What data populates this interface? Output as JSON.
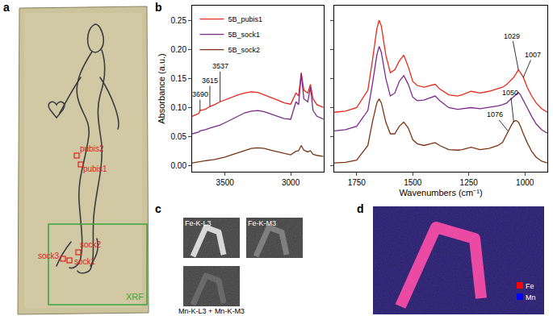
{
  "chart_data": [
    {
      "type": "line",
      "y_label": "Absorbance (a.u.)",
      "legend": "top left",
      "grid": false,
      "x": [
        3750,
        3700,
        3690,
        3650,
        3615,
        3580,
        3537,
        3500,
        3450,
        3400,
        3350,
        3300,
        3250,
        3200,
        3150,
        3100,
        3050,
        3000,
        2960,
        2940,
        2920,
        2900,
        2870,
        2850,
        2830,
        2800,
        2750
      ],
      "xlim": [
        3750,
        2750
      ],
      "xticks": [
        3500,
        3000
      ],
      "ylim": [
        -0.01,
        0.275
      ],
      "yticks": [
        {
          "value": 0,
          "label": "0.00"
        },
        {
          "value": 0.05,
          "label": "0.05"
        },
        {
          "value": 0.1,
          "label": "0.10"
        },
        {
          "value": 0.15,
          "label": "0.15"
        },
        {
          "value": 0.2,
          "label": "0.20"
        },
        {
          "value": 0.25,
          "label": "0.25"
        }
      ],
      "series": [
        {
          "name": "5B_pubis1",
          "color": "#e8291c",
          "values": [
            0.085,
            0.09,
            0.095,
            0.097,
            0.102,
            0.105,
            0.11,
            0.113,
            0.118,
            0.122,
            0.125,
            0.127,
            0.126,
            0.122,
            0.117,
            0.113,
            0.108,
            0.106,
            0.125,
            0.12,
            0.16,
            0.13,
            0.125,
            0.14,
            0.115,
            0.105,
            0.1
          ]
        },
        {
          "name": "5B_sock1",
          "color": "#7b2a8c",
          "values": [
            0.055,
            0.058,
            0.06,
            0.062,
            0.065,
            0.067,
            0.07,
            0.074,
            0.08,
            0.086,
            0.091,
            0.094,
            0.095,
            0.093,
            0.089,
            0.085,
            0.081,
            0.08,
            0.11,
            0.105,
            0.158,
            0.115,
            0.11,
            0.135,
            0.095,
            0.085,
            0.08
          ]
        },
        {
          "name": "5B_sock2",
          "color": "#7a3414",
          "values": [
            0.005,
            0.007,
            0.008,
            0.009,
            0.01,
            0.011,
            0.013,
            0.015,
            0.019,
            0.023,
            0.027,
            0.03,
            0.031,
            0.03,
            0.027,
            0.024,
            0.021,
            0.019,
            0.025,
            0.026,
            0.035,
            0.027,
            0.024,
            0.026,
            0.02,
            0.018,
            0.016
          ]
        }
      ],
      "annotations": [
        {
          "text": "3690",
          "x": 3690,
          "y": 0.095
        },
        {
          "text": "3615",
          "x": 3615,
          "y": 0.102
        },
        {
          "text": "3537",
          "x": 3537,
          "y": 0.11
        }
      ]
    },
    {
      "type": "line",
      "x_label": "Wavenumbers (cm⁻¹)",
      "grid": false,
      "tick_labels": "x",
      "x": [
        1850,
        1800,
        1750,
        1700,
        1680,
        1660,
        1650,
        1640,
        1620,
        1600,
        1580,
        1560,
        1540,
        1520,
        1500,
        1480,
        1450,
        1420,
        1400,
        1380,
        1340,
        1300,
        1280,
        1240,
        1200,
        1160,
        1120,
        1100,
        1080,
        1076,
        1060,
        1050,
        1040,
        1029,
        1020,
        1007,
        990,
        970,
        950,
        925,
        900
      ],
      "xlim": [
        1850,
        900
      ],
      "xticks": [
        1750,
        1500,
        1250,
        1000
      ],
      "ylim": [
        -0.01,
        0.275
      ],
      "yticks": [
        0,
        0.05,
        0.1,
        0.15,
        0.2,
        0.25
      ],
      "series": [
        {
          "name": "5B_pubis1",
          "color": "#e8291c",
          "values": [
            0.092,
            0.094,
            0.1,
            0.13,
            0.18,
            0.235,
            0.25,
            0.24,
            0.19,
            0.16,
            0.165,
            0.18,
            0.19,
            0.17,
            0.145,
            0.138,
            0.135,
            0.138,
            0.14,
            0.132,
            0.122,
            0.12,
            0.122,
            0.128,
            0.125,
            0.128,
            0.132,
            0.135,
            0.14,
            0.142,
            0.148,
            0.152,
            0.158,
            0.165,
            0.16,
            0.152,
            0.135,
            0.12,
            0.108,
            0.098,
            0.092
          ]
        },
        {
          "name": "5B_sock1",
          "color": "#7b2a8c",
          "values": [
            0.06,
            0.062,
            0.068,
            0.095,
            0.14,
            0.19,
            0.205,
            0.195,
            0.15,
            0.12,
            0.125,
            0.145,
            0.155,
            0.14,
            0.118,
            0.112,
            0.113,
            0.117,
            0.12,
            0.112,
            0.1,
            0.097,
            0.098,
            0.1,
            0.098,
            0.1,
            0.103,
            0.105,
            0.108,
            0.11,
            0.115,
            0.119,
            0.122,
            0.126,
            0.122,
            0.113,
            0.1,
            0.085,
            0.072,
            0.062,
            0.056
          ]
        },
        {
          "name": "5B_sock2",
          "color": "#7a3414",
          "values": [
            0.005,
            0.006,
            0.01,
            0.035,
            0.075,
            0.108,
            0.115,
            0.108,
            0.075,
            0.055,
            0.055,
            0.068,
            0.075,
            0.065,
            0.045,
            0.038,
            0.035,
            0.038,
            0.04,
            0.035,
            0.028,
            0.027,
            0.028,
            0.032,
            0.028,
            0.03,
            0.035,
            0.04,
            0.055,
            0.06,
            0.07,
            0.076,
            0.078,
            0.075,
            0.068,
            0.055,
            0.04,
            0.025,
            0.015,
            0.008,
            0.005
          ]
        }
      ],
      "annotations": [
        {
          "text": "1076",
          "x": 1076,
          "y": 0.06
        },
        {
          "text": "1050",
          "x": 1050,
          "y": 0.076
        },
        {
          "text": "1029",
          "x": 1029,
          "y": 0.165
        },
        {
          "text": "1007",
          "x": 1007,
          "y": 0.152
        }
      ]
    }
  ],
  "panels": {
    "a": {
      "label": "a",
      "points": [
        "pubis2",
        "pubis1",
        "sock2",
        "sock3",
        "sock1"
      ],
      "region": "XRF"
    },
    "b": {
      "label": "b"
    },
    "c": {
      "label": "c",
      "maps": [
        "Fe-K-L3",
        "Fe-K-M3",
        "Mn-K-L3 + Mn-K-M3"
      ]
    },
    "d": {
      "label": "d",
      "legend": [
        {
          "name": "Fe",
          "color": "#ff0000"
        },
        {
          "name": "Mn",
          "color": "#0000ff"
        }
      ]
    }
  }
}
